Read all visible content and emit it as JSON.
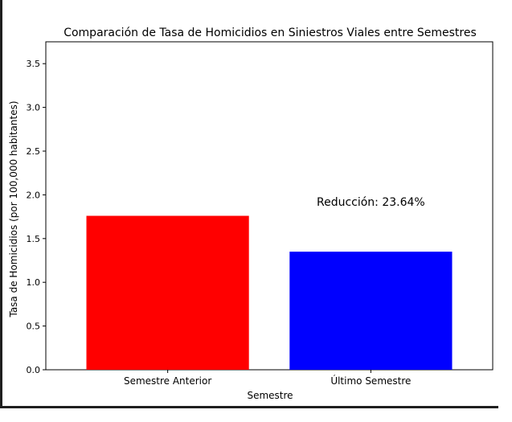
{
  "chart_data": {
    "type": "bar",
    "title": "Comparación de Tasa de Homicidios en Siniestros Viales entre Semestres",
    "xlabel": "Semestre",
    "ylabel": "Tasa de Homicidios (por 100,000 habitantes)",
    "categories": [
      "Semestre Anterior",
      "Último Semestre"
    ],
    "values": [
      1.76,
      1.35
    ],
    "colors": [
      "#ff0000",
      "#0000ff"
    ],
    "ylim": [
      0,
      3.75
    ],
    "yticks": [
      0.0,
      0.5,
      1.0,
      1.5,
      2.0,
      2.5,
      3.0,
      3.5
    ],
    "ytick_labels": [
      "0.0",
      "0.5",
      "1.0",
      "1.5",
      "2.0",
      "2.5",
      "3.0",
      "3.5"
    ],
    "annotation": {
      "text": "Reducción: 23.64%",
      "x_category": "Último Semestre",
      "y": 1.92
    },
    "grid": false,
    "legend": "none"
  }
}
